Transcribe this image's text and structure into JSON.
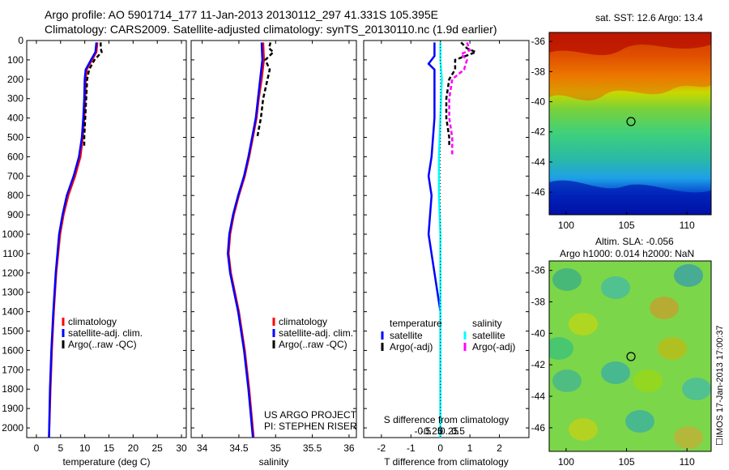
{
  "header": {
    "line1": "Argo profile: AO 5901714_177 11-Jan-2013 20130112_297 41.331S 105.395E",
    "line2": "Climatology: CARS2009. Satellite-adjusted climatology: synTS_20130110.nc (1.9d earlier)"
  },
  "colors": {
    "climatology": "#ff0000",
    "satellite_adj": "#0000ff",
    "argo": "#000000",
    "sat_salinity": "#00ffff",
    "argo_salinity": "#ff00ff"
  },
  "chart_data": [
    {
      "type": "line",
      "panel": "temperature",
      "xlabel": "temperature (deg C)",
      "xlim": [
        -2,
        31
      ],
      "xticks": [
        "0",
        "5",
        "10",
        "15",
        "20",
        "25",
        "30"
      ],
      "ylim": [
        2050,
        0
      ],
      "yticks": [
        "0",
        "100",
        "200",
        "300",
        "400",
        "500",
        "600",
        "700",
        "800",
        "900",
        "1000",
        "1100",
        "1200",
        "1300",
        "1400",
        "1500",
        "1600",
        "1700",
        "1800",
        "1900",
        "2000"
      ],
      "legend": [
        "climatology",
        "satellite-adj. clim.",
        "Argo(..raw -QC)"
      ],
      "series": [
        {
          "name": "climatology",
          "depth": [
            10,
            60,
            100,
            150,
            200,
            300,
            400,
            500,
            600,
            700,
            800,
            900,
            1000,
            1200,
            1400,
            1600,
            1800,
            2050
          ],
          "values": [
            12.6,
            12.4,
            11.5,
            10.4,
            10.2,
            10.1,
            9.9,
            9.6,
            9.1,
            8.0,
            6.6,
            5.6,
            4.9,
            4.1,
            3.6,
            3.2,
            2.9,
            2.6
          ]
        },
        {
          "name": "satellite-adj. clim.",
          "depth": [
            10,
            60,
            100,
            150,
            200,
            300,
            400,
            500,
            600,
            700,
            800,
            900,
            1000,
            1200,
            1400,
            1600,
            1800,
            2050
          ],
          "values": [
            12.4,
            12.2,
            11.3,
            10.2,
            10.0,
            9.9,
            9.7,
            9.4,
            8.8,
            7.7,
            6.3,
            5.4,
            4.7,
            4.0,
            3.5,
            3.1,
            2.8,
            2.6
          ]
        },
        {
          "name": "Argo(..raw -QC)",
          "depth": [
            10,
            40,
            60,
            100,
            150,
            200,
            300,
            400,
            500,
            550
          ],
          "values": [
            13.3,
            13.3,
            13.5,
            12.0,
            10.9,
            10.5,
            10.3,
            10.1,
            9.9,
            9.9
          ]
        }
      ]
    },
    {
      "type": "line",
      "panel": "salinity",
      "xlabel": "salinity",
      "xlim": [
        33.85,
        36.1
      ],
      "xticks": [
        "34",
        "34.5",
        "35",
        "35.5",
        "36"
      ],
      "ylim": [
        2050,
        0
      ],
      "legend": [
        "climatology",
        "satellite-adj. clim.",
        "Argo(..raw -QC)"
      ],
      "annotations": [
        "US ARGO PROJECT",
        "PI: STEPHEN RISER"
      ],
      "series": [
        {
          "name": "climatology",
          "depth": [
            10,
            100,
            200,
            300,
            400,
            500,
            600,
            700,
            800,
            900,
            1000,
            1100,
            1200,
            1400,
            1600,
            1800,
            2050
          ],
          "values": [
            34.83,
            34.84,
            34.81,
            34.77,
            34.74,
            34.69,
            34.64,
            34.58,
            34.5,
            34.43,
            34.38,
            34.36,
            34.39,
            34.5,
            34.58,
            34.64,
            34.7
          ]
        },
        {
          "name": "satellite-adj. clim.",
          "depth": [
            10,
            100,
            200,
            300,
            400,
            500,
            600,
            700,
            800,
            900,
            1000,
            1100,
            1200,
            1400,
            1600,
            1800,
            2050
          ],
          "values": [
            34.81,
            34.82,
            34.79,
            34.76,
            34.73,
            34.68,
            34.63,
            34.57,
            34.49,
            34.42,
            34.37,
            34.35,
            34.38,
            34.49,
            34.57,
            34.63,
            34.69
          ]
        },
        {
          "name": "Argo(..raw -QC)",
          "depth": [
            10,
            40,
            60,
            100,
            150,
            200,
            300,
            400,
            500
          ],
          "values": [
            34.93,
            34.91,
            34.97,
            34.86,
            34.92,
            34.89,
            34.83,
            34.8,
            34.75
          ]
        }
      ]
    },
    {
      "type": "line",
      "panel": "difference",
      "xlabel": "T difference from climatology",
      "xlabel_top": "S difference from climatology",
      "xlim": [
        -2.6,
        3.0
      ],
      "xticks": [
        "-2",
        "-1",
        "0",
        "1",
        "2"
      ],
      "xticks_top": [
        "-0.5",
        "-0.25",
        "0",
        "0.25",
        "0.5"
      ],
      "ylim": [
        2050,
        0
      ],
      "legend_groups": {
        "temperature": [
          "satellite",
          "Argo(-adj)"
        ],
        "salinity": [
          "satellite",
          "Argo(-adj)"
        ]
      },
      "series": [
        {
          "name": "satellite",
          "group": "temperature",
          "depth": [
            10,
            80,
            120,
            150,
            200,
            400,
            600,
            700,
            800,
            1000,
            1200,
            1400,
            1600,
            2050
          ],
          "values": [
            -0.2,
            -0.2,
            -0.4,
            -0.2,
            -0.2,
            -0.2,
            -0.3,
            -0.4,
            -0.3,
            -0.4,
            -0.2,
            0.0,
            0.0,
            0.0
          ]
        },
        {
          "name": "Argo(-adj)",
          "group": "temperature",
          "depth": [
            10,
            40,
            60,
            100,
            150,
            200,
            300,
            400,
            500,
            550
          ],
          "values": [
            0.7,
            0.9,
            1.2,
            0.5,
            0.5,
            0.3,
            0.2,
            0.2,
            0.3,
            0.3
          ]
        },
        {
          "name": "satellite",
          "group": "salinity",
          "depth": [
            10,
            100,
            200,
            400,
            600,
            800,
            1000,
            1500,
            2050
          ],
          "values": [
            0.0,
            0.0,
            0.05,
            0.0,
            -0.05,
            -0.05,
            0.0,
            0.0,
            0.0
          ]
        },
        {
          "name": "Argo(-adj)",
          "group": "salinity",
          "depth": [
            10,
            50,
            70,
            100,
            150,
            200,
            300,
            400,
            500,
            600
          ],
          "values": [
            0.9,
            1.0,
            0.7,
            0.9,
            0.8,
            0.4,
            0.3,
            0.3,
            0.4,
            0.4
          ]
        }
      ]
    },
    {
      "type": "heatmap",
      "panel": "sst_map",
      "title": "sat. SST: 12.6 Argo: 13.4",
      "xticks": [
        "100",
        "105",
        "110"
      ],
      "yticks": [
        "-36",
        "-38",
        "-40",
        "-42",
        "-44",
        "-46"
      ],
      "marker": {
        "lon": 105.4,
        "lat": -41.3
      }
    },
    {
      "type": "heatmap",
      "panel": "sla_map",
      "title_line1": "Altim. SLA: -0.056",
      "title_line2": "Argo h1000: 0.014 h2000: NaN",
      "xticks": [
        "100",
        "105",
        "110"
      ],
      "yticks": [
        "-36",
        "-38",
        "-40",
        "-42",
        "-44",
        "-46"
      ],
      "marker": {
        "lon": 105.4,
        "lat": -41.3
      },
      "side_text": "☐IMOS 17-Jan-2013 17:00:37"
    }
  ]
}
